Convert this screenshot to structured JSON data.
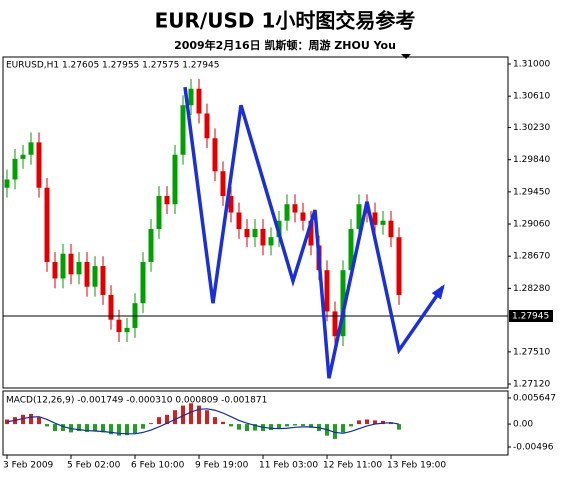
{
  "chart_data": [
    {
      "type": "candlestick",
      "title": "EUR/USD 1小时图交易参考",
      "subtitle": "2009年2月16日 凯斯顿：周游 ZHOU You",
      "label": "EURUSD,H1 1.27605 1.27955 1.27575 1.27945",
      "categories": [
        "3 Feb 2009",
        null,
        null,
        null,
        null,
        null,
        null,
        null,
        "5 Feb 02:00",
        null,
        null,
        null,
        null,
        null,
        null,
        null,
        "6 Feb 10:00",
        null,
        null,
        null,
        null,
        null,
        null,
        null,
        "9 Feb 19:00",
        null,
        null,
        null,
        null,
        null,
        null,
        null,
        "11 Feb 03:00",
        null,
        null,
        null,
        null,
        null,
        null,
        null,
        "12 Feb 11:00",
        null,
        null,
        null,
        null,
        null,
        null,
        null,
        "13 Feb 19:00",
        null
      ],
      "open": [
        1.295,
        1.296,
        1.2985,
        1.299,
        1.3005,
        1.295,
        1.286,
        1.284,
        1.287,
        1.2845,
        1.286,
        1.283,
        1.2855,
        1.282,
        1.279,
        1.2775,
        1.278,
        1.281,
        1.286,
        1.29,
        1.294,
        1.293,
        1.299,
        1.305,
        1.307,
        1.304,
        1.301,
        1.297,
        1.294,
        1.292,
        1.29,
        1.289,
        1.29,
        1.288,
        1.289,
        1.291,
        1.293,
        1.292,
        1.291,
        1.288,
        1.285,
        1.28,
        1.277,
        1.285,
        1.29,
        1.293,
        1.292,
        1.2905,
        1.291,
        1.289
      ],
      "high": [
        1.2972,
        1.2997,
        1.3002,
        1.3017,
        1.3017,
        1.2962,
        1.2872,
        1.2882,
        1.2882,
        1.2872,
        1.2872,
        1.2867,
        1.2867,
        1.2832,
        1.2802,
        1.2792,
        1.2822,
        1.2872,
        1.2912,
        1.2952,
        1.2952,
        1.3002,
        1.3062,
        1.3082,
        1.3082,
        1.3052,
        1.3022,
        1.2982,
        1.2952,
        1.2932,
        1.2912,
        1.2912,
        1.2912,
        1.2902,
        1.2922,
        1.2942,
        1.2942,
        1.2932,
        1.2922,
        1.2892,
        1.2862,
        1.2812,
        1.2862,
        1.2912,
        1.2942,
        1.2942,
        1.2932,
        1.2922,
        1.2922,
        1.2902
      ],
      "low": [
        1.2938,
        1.2948,
        1.2973,
        1.2978,
        1.2938,
        1.2848,
        1.2828,
        1.2828,
        1.2833,
        1.2833,
        1.2818,
        1.2818,
        1.2808,
        1.2778,
        1.2763,
        1.2763,
        1.2768,
        1.2798,
        1.2848,
        1.2888,
        1.2918,
        1.2918,
        1.2978,
        1.3038,
        1.3028,
        1.2998,
        1.2958,
        1.2928,
        1.2908,
        1.2888,
        1.2878,
        1.2878,
        1.2868,
        1.2868,
        1.2878,
        1.2898,
        1.2908,
        1.2898,
        1.2868,
        1.2838,
        1.2788,
        1.2758,
        1.2758,
        1.2838,
        1.2888,
        1.2908,
        1.2893,
        1.2893,
        1.2878,
        1.2808
      ],
      "close": [
        1.296,
        1.2985,
        1.299,
        1.3005,
        1.295,
        1.286,
        1.284,
        1.287,
        1.2845,
        1.286,
        1.283,
        1.2855,
        1.282,
        1.279,
        1.2775,
        1.278,
        1.281,
        1.286,
        1.29,
        1.294,
        1.293,
        1.299,
        1.305,
        1.307,
        1.304,
        1.301,
        1.297,
        1.294,
        1.292,
        1.29,
        1.289,
        1.29,
        1.288,
        1.289,
        1.291,
        1.293,
        1.292,
        1.291,
        1.288,
        1.285,
        1.28,
        1.277,
        1.285,
        1.29,
        1.293,
        1.292,
        1.2905,
        1.291,
        1.289,
        1.282
      ],
      "up_color": "#00a000",
      "down_color": "#e00000",
      "ylim": [
        1.27072,
        1.31085
      ],
      "yticks": [
        {
          "value": 1.31,
          "label": "1.31000"
        },
        {
          "value": 1.3061,
          "label": "1.30610"
        },
        {
          "value": 1.3023,
          "label": "1.30230"
        },
        {
          "value": 1.2984,
          "label": "1.29840"
        },
        {
          "value": 1.2945,
          "label": "1.29450"
        },
        {
          "value": 1.2906,
          "label": "1.29060"
        },
        {
          "value": 1.2867,
          "label": "1.28670"
        },
        {
          "value": 1.2828,
          "label": "1.28280"
        },
        {
          "value": 1.2751,
          "label": "1.27510"
        },
        {
          "value": 1.2712,
          "label": "1.27120"
        }
      ],
      "current_price": 1.27945,
      "annotation": {
        "x": [
          22.25,
          25.75,
          29.25,
          35.75,
          38.5,
          40.25,
          45,
          49,
          54.5
        ],
        "y": [
          1.3072,
          1.281,
          1.305,
          1.2837,
          1.2923,
          1.2719,
          1.2933,
          1.2753,
          1.283
        ],
        "color": "#1a2fd8"
      }
    },
    {
      "type": "macd",
      "label": "MACD(12,26,9) -0.001749 -0.000310 0.000809 -0.001871",
      "histogram": {
        "values": [
          0.001,
          0.0015,
          0.002,
          0.0022,
          0.0015,
          -0.0005,
          -0.0015,
          -0.0015,
          -0.0018,
          -0.0015,
          -0.0017,
          -0.0015,
          -0.0018,
          -0.0022,
          -0.0025,
          -0.0024,
          -0.002,
          -0.001,
          0.0002,
          0.0015,
          0.002,
          0.003,
          0.004,
          0.0045,
          0.004,
          0.003,
          0.0015,
          0.0005,
          -0.0005,
          -0.0012,
          -0.0015,
          -0.0014,
          -0.0015,
          -0.0013,
          -0.001,
          -0.0005,
          -0.0003,
          -0.0004,
          -0.0008,
          -0.0015,
          -0.0025,
          -0.0032,
          -0.0018,
          -0.0005,
          0.0008,
          0.001,
          0.0008,
          0.0007,
          0.0004,
          -0.0012
        ],
        "up_color": "#d02020",
        "down_color": "#20a020"
      },
      "signal": {
        "values": [
          0.0005,
          0.0008,
          0.0012,
          0.0015,
          0.0016,
          0.001,
          0.0002,
          -0.0005,
          -0.001,
          -0.0012,
          -0.0014,
          -0.0015,
          -0.0016,
          -0.0018,
          -0.002,
          -0.0021,
          -0.0021,
          -0.0018,
          -0.0013,
          -0.0006,
          0.0002,
          0.001,
          0.0018,
          0.0026,
          0.0032,
          0.0033,
          0.003,
          0.0024,
          0.0016,
          0.0008,
          0.0002,
          -0.0003,
          -0.0007,
          -0.0009,
          -0.001,
          -0.0009,
          -0.0007,
          -0.0006,
          -0.0006,
          -0.0008,
          -0.0012,
          -0.0018,
          -0.002,
          -0.0016,
          -0.001,
          -0.0004,
          0,
          0.0002,
          0.0003,
          0
        ],
        "color": "#1030a0"
      },
      "ylim": [
        -0.00669,
        0.00716
      ],
      "yticks": [
        0.005647,
        {
          "value": 0,
          "label": "0.00"
        },
        -0.00496
      ]
    }
  ]
}
